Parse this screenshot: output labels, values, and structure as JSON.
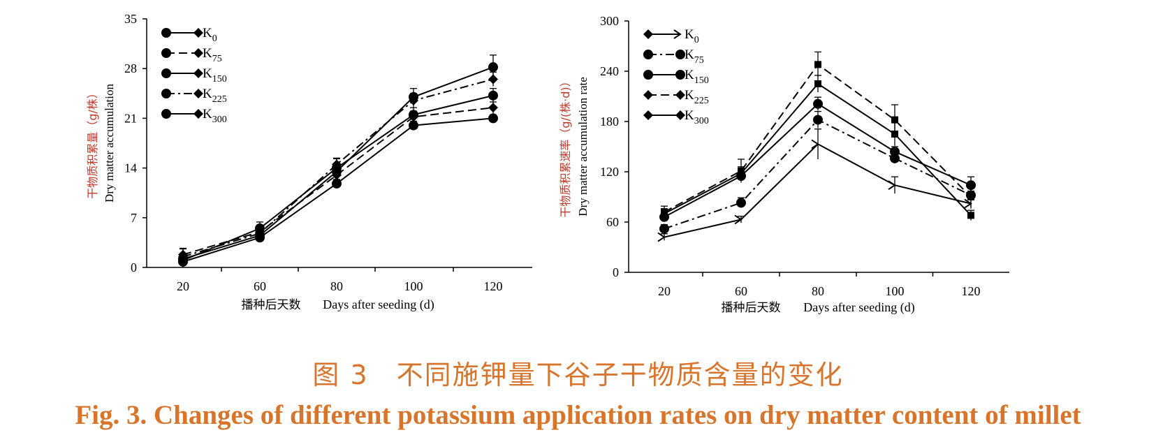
{
  "caption": {
    "chinese": "图 3　不同施钾量下谷子干物质含量的变化",
    "english": "Fig. 3. Changes of different potassium application rates on dry matter content of millet"
  },
  "colors": {
    "caption": "#d8752b",
    "axis": "#000000",
    "ylabel_cn": "#c0392b"
  },
  "chart_data": [
    {
      "type": "line",
      "ylabel_cn": "干物质积累量（g/株）",
      "ylabel_en": "Dry matter accumulation",
      "xlabel_cn": "播种后天数",
      "xlabel_en": "Days after seeding (d)",
      "categories": [
        "20",
        "60",
        "80",
        "100",
        "120"
      ],
      "ylim": [
        0,
        35
      ],
      "yticks": [
        "0",
        "7",
        "14",
        "21",
        "28",
        "35"
      ],
      "legend_position": "top-left",
      "series": [
        {
          "name": "K0",
          "sub": "0",
          "dash": "solid",
          "marker": "circle",
          "values": [
            1.2,
            4.5,
            13.5,
            24.0,
            28.2
          ],
          "errors": [
            1.5,
            0.6,
            0.8,
            1.2,
            1.7
          ]
        },
        {
          "name": "K75",
          "sub": "75",
          "dash": "dashed",
          "marker": "diamond",
          "values": [
            1.8,
            5.0,
            13.0,
            21.2,
            22.5
          ],
          "errors": [
            0.8,
            0.6,
            0.7,
            0.8,
            0.8
          ]
        },
        {
          "name": "K150",
          "sub": "150",
          "dash": "solid",
          "marker": "circle",
          "values": [
            1.0,
            5.5,
            14.0,
            21.5,
            24.2
          ],
          "errors": [
            0.6,
            0.9,
            1.3,
            1.0,
            1.0
          ]
        },
        {
          "name": "K225",
          "sub": "225",
          "dash": "dashdot",
          "marker": "diamond",
          "values": [
            1.5,
            4.8,
            14.5,
            23.5,
            26.5
          ],
          "errors": [
            0.5,
            0.5,
            0.9,
            1.0,
            1.0
          ]
        },
        {
          "name": "K300",
          "sub": "300",
          "dash": "solid",
          "marker": "circle",
          "values": [
            0.8,
            4.2,
            11.8,
            20.0,
            21.0
          ],
          "errors": [
            0.4,
            0.4,
            0.6,
            0.6,
            0.5
          ]
        }
      ]
    },
    {
      "type": "line",
      "ylabel_cn": "干物质积累速率（g/(株·d)）",
      "ylabel_en": "Dry matter accumulation rate",
      "xlabel_cn": "播种后天数",
      "xlabel_en": "Days after seeding (d)",
      "categories": [
        "20",
        "60",
        "80",
        "100",
        "120"
      ],
      "ylim": [
        0,
        300
      ],
      "yticks": [
        "0",
        "60",
        "120",
        "180",
        "240",
        "300"
      ],
      "legend_position": "top-left",
      "series": [
        {
          "name": "K0",
          "sub": "0",
          "dash": "solid",
          "marker": "arrow",
          "values": [
            42,
            63,
            153,
            104,
            82
          ],
          "errors": [
            4,
            4,
            18,
            10,
            6
          ]
        },
        {
          "name": "K75",
          "sub": "75",
          "dash": "dashdot",
          "marker": "circle",
          "values": [
            52,
            83,
            182,
            136,
            92
          ],
          "errors": [
            5,
            6,
            10,
            6,
            5
          ]
        },
        {
          "name": "K150",
          "sub": "150",
          "dash": "solid",
          "marker": "circle",
          "values": [
            66,
            115,
            201,
            144,
            104
          ],
          "errors": [
            5,
            5,
            8,
            6,
            10
          ]
        },
        {
          "name": "K225",
          "sub": "225",
          "dash": "dashed",
          "marker": "square",
          "values": [
            72,
            121,
            248,
            182,
            90
          ],
          "errors": [
            7,
            14,
            15,
            18,
            12
          ]
        },
        {
          "name": "K300",
          "sub": "300",
          "dash": "solid",
          "marker": "square",
          "values": [
            70,
            118,
            225,
            165,
            68
          ],
          "errors": [
            6,
            8,
            10,
            14,
            6
          ]
        }
      ]
    }
  ]
}
